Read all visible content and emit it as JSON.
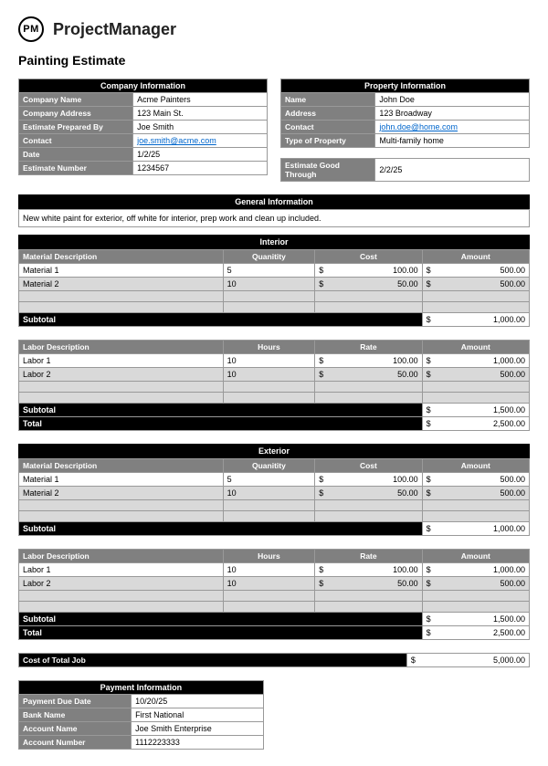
{
  "brand": "ProjectManager",
  "logo_text": "PM",
  "title": "Painting Estimate",
  "company": {
    "header": "Company Information",
    "rows": [
      {
        "label": "Company Name",
        "value": "Acme Painters"
      },
      {
        "label": "Company Address",
        "value": "123 Main St."
      },
      {
        "label": "Estimate Prepared By",
        "value": "Joe Smith"
      },
      {
        "label": "Contact",
        "value": "joe.smith@acme.com",
        "link": true
      },
      {
        "label": "Date",
        "value": "1/2/25"
      },
      {
        "label": "Estimate Number",
        "value": "1234567"
      }
    ]
  },
  "property": {
    "header": "Property Information",
    "rows": [
      {
        "label": "Name",
        "value": "John Doe"
      },
      {
        "label": "Address",
        "value": "123 Broadway"
      },
      {
        "label": "Contact",
        "value": "john.doe@home.com",
        "link": true
      },
      {
        "label": "Type of Property",
        "value": "Multi-family home"
      }
    ],
    "gap_row": true,
    "footer": {
      "label": "Estimate Good Through",
      "value": "2/2/25"
    }
  },
  "general": {
    "header": "General Information",
    "text": "New white paint for exterior, off white for interior, prep work and clean up included."
  },
  "sections": [
    {
      "title": "Interior",
      "blocks": [
        {
          "cols": [
            "Material Description",
            "Quanitity",
            "Cost",
            "Amount"
          ],
          "rows": [
            {
              "d": "Material 1",
              "q": "5",
              "c": "100.00",
              "a": "500.00"
            },
            {
              "d": "Material 2",
              "q": "10",
              "c": "50.00",
              "a": "500.00",
              "alt": true
            }
          ],
          "subtotal": "1,000.00",
          "total": null
        },
        {
          "cols": [
            "Labor Description",
            "Hours",
            "Rate",
            "Amount"
          ],
          "rows": [
            {
              "d": "Labor 1",
              "q": "10",
              "c": "100.00",
              "a": "1,000.00"
            },
            {
              "d": "Labor 2",
              "q": "10",
              "c": "50.00",
              "a": "500.00",
              "alt": true
            }
          ],
          "subtotal": "1,500.00",
          "total": "2,500.00"
        }
      ]
    },
    {
      "title": "Exterior",
      "blocks": [
        {
          "cols": [
            "Material Description",
            "Quanitity",
            "Cost",
            "Amount"
          ],
          "rows": [
            {
              "d": "Material 1",
              "q": "5",
              "c": "100.00",
              "a": "500.00"
            },
            {
              "d": "Material 2",
              "q": "10",
              "c": "50.00",
              "a": "500.00",
              "alt": true
            }
          ],
          "subtotal": "1,000.00",
          "total": null
        },
        {
          "cols": [
            "Labor Description",
            "Hours",
            "Rate",
            "Amount"
          ],
          "rows": [
            {
              "d": "Labor 1",
              "q": "10",
              "c": "100.00",
              "a": "1,000.00"
            },
            {
              "d": "Labor 2",
              "q": "10",
              "c": "50.00",
              "a": "500.00",
              "alt": true
            }
          ],
          "subtotal": "1,500.00",
          "total": "2,500.00"
        }
      ]
    }
  ],
  "cost_total": {
    "label": "Cost of Total Job",
    "value": "5,000.00"
  },
  "payment": {
    "header": "Payment Information",
    "rows": [
      {
        "label": "Payment Due Date",
        "value": "10/20/25"
      },
      {
        "label": "Bank Name",
        "value": "First National"
      },
      {
        "label": "Account Name",
        "value": "Joe Smith Enterprise"
      },
      {
        "label": "Account Number",
        "value": "1112223333"
      }
    ]
  },
  "labels": {
    "subtotal": "Subtotal",
    "total": "Total",
    "currency": "$"
  }
}
